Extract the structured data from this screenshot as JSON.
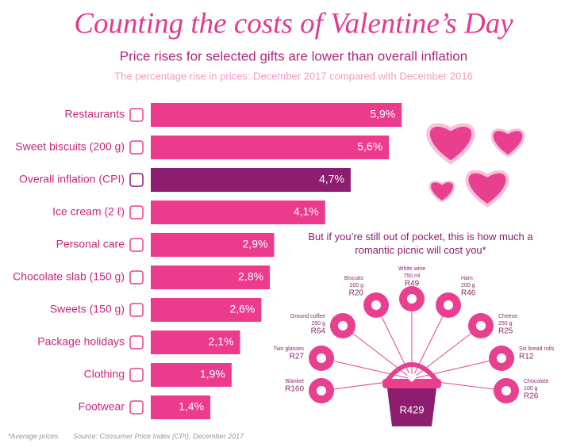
{
  "chart_data": {
    "type": "bar",
    "orientation": "horizontal",
    "title": "Counting the costs of Valentine’s Day",
    "subtitle": "Price rises for selected gifts are lower than overall inflation",
    "description": "The percentage rise in prices: December 2017 compared with December 2016",
    "categories": [
      "Restaurants",
      "Sweet biscuits (200 g)",
      "Overall inflation (CPI)",
      "Ice cream (2 ℓ)",
      "Personal care",
      "Chocolate slab (150 g)",
      "Sweets (150 g)",
      "Package holidays",
      "Clothing",
      "Footwear"
    ],
    "values": [
      5.9,
      5.6,
      4.7,
      4.1,
      2.9,
      2.8,
      2.6,
      2.1,
      1.9,
      1.4
    ],
    "value_labels": [
      "5,9%",
      "5,6%",
      "4,7%",
      "4,1%",
      "2,9%",
      "2,8%",
      "2,6%",
      "2,1%",
      "1,9%",
      "1,4%"
    ],
    "colors": [
      "#ec3b8d",
      "#ec3b8d",
      "#8c1d6f",
      "#ec3b8d",
      "#ec3b8d",
      "#ec3b8d",
      "#ec3b8d",
      "#ec3b8d",
      "#ec3b8d",
      "#ec3b8d"
    ]
  },
  "picnic": {
    "title": "But if you’re still out of pocket, this is how much a romantic picnic will cost you*",
    "total": "R429",
    "items": [
      {
        "name": "Blanket",
        "price": "R160"
      },
      {
        "name": "Two glasses",
        "price": "R27"
      },
      {
        "name": "Ground coffee",
        "size": "250 g",
        "price": "R64"
      },
      {
        "name": "Biscuits",
        "size": "200 g",
        "price": "R20"
      },
      {
        "name": "White wine",
        "size": "750 ml",
        "price": "R49"
      },
      {
        "name": "Ham",
        "size": "200 g",
        "price": "R46"
      },
      {
        "name": "Cheese",
        "size": "250 g",
        "price": "R25"
      },
      {
        "name": "Six bread rolls",
        "price": "R12"
      },
      {
        "name": "Chocolate",
        "size": "100 g",
        "price": "R26"
      }
    ]
  },
  "footer": {
    "note": "*Average prices",
    "source": "Source: Consumer Price Index (CPI), December 2017"
  }
}
